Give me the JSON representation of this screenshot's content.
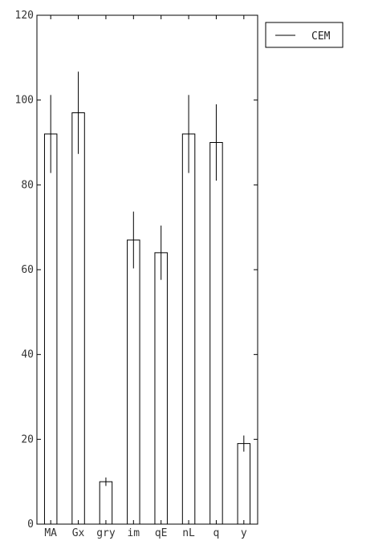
{
  "chart_data": {
    "type": "bar",
    "categories": [
      "MA",
      "Gx",
      "gry",
      "im",
      "qE",
      "nL",
      "q",
      "y"
    ],
    "series": [
      {
        "name": "CEM",
        "values": [
          92,
          97,
          10,
          67,
          64,
          92,
          90,
          19
        ],
        "errors": [
          9.2,
          9.7,
          1.0,
          6.7,
          6.4,
          9.2,
          9.0,
          1.9
        ]
      }
    ],
    "ylim": [
      0,
      120
    ],
    "yticks": [
      0,
      20,
      40,
      60,
      80,
      100,
      120
    ],
    "grid": false,
    "legend_position": "top-right",
    "colors": {
      "bar_fill": "#ffffff",
      "stroke": "#000000"
    }
  }
}
